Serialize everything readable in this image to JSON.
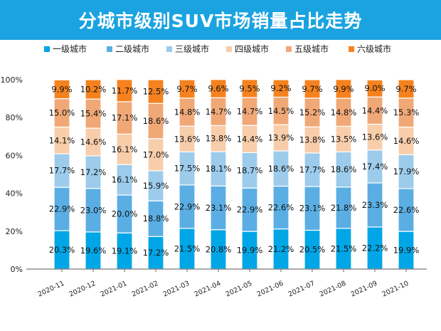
{
  "chart_data": {
    "type": "bar",
    "stacked": true,
    "title": "分城市级别SUV市场销量占比走势",
    "xlabel": "",
    "ylabel": "",
    "ylim": [
      0,
      100
    ],
    "yticks": [
      "0%",
      "20%",
      "40%",
      "60%",
      "80%",
      "100%"
    ],
    "legend_position": "top",
    "grid": false,
    "categories": [
      "2020-11",
      "2020-12",
      "2021-01",
      "2021-02",
      "2021-03",
      "2021-04",
      "2021-05",
      "2021-06",
      "2021-07",
      "2021-08",
      "2021-09",
      "2021-10"
    ],
    "series": [
      {
        "name": "一级城市",
        "color": "#00a6e6",
        "values": [
          20.3,
          19.6,
          19.1,
          17.2,
          21.5,
          20.8,
          19.9,
          21.2,
          20.5,
          21.5,
          22.2,
          19.9
        ]
      },
      {
        "name": "二级城市",
        "color": "#5aaee3",
        "values": [
          22.9,
          23.0,
          20.0,
          18.8,
          22.9,
          23.1,
          22.9,
          22.6,
          23.1,
          21.8,
          23.3,
          22.6
        ]
      },
      {
        "name": "三级城市",
        "color": "#9ccbeb",
        "values": [
          17.7,
          17.2,
          16.1,
          15.9,
          17.5,
          18.1,
          18.7,
          18.6,
          17.7,
          18.6,
          17.4,
          17.9
        ]
      },
      {
        "name": "四级城市",
        "color": "#f8cdaa",
        "values": [
          14.1,
          14.6,
          16.1,
          17.0,
          13.6,
          13.8,
          14.4,
          13.9,
          13.8,
          13.5,
          13.6,
          14.6
        ]
      },
      {
        "name": "五级城市",
        "color": "#f0a877",
        "values": [
          15.0,
          15.4,
          17.1,
          18.6,
          14.8,
          14.7,
          14.7,
          14.5,
          15.2,
          14.8,
          14.4,
          15.3
        ]
      },
      {
        "name": "六级城市",
        "color": "#f5821f",
        "values": [
          9.9,
          10.2,
          11.7,
          12.5,
          9.7,
          9.6,
          9.5,
          9.2,
          9.7,
          9.9,
          9.0,
          9.7
        ]
      }
    ]
  }
}
